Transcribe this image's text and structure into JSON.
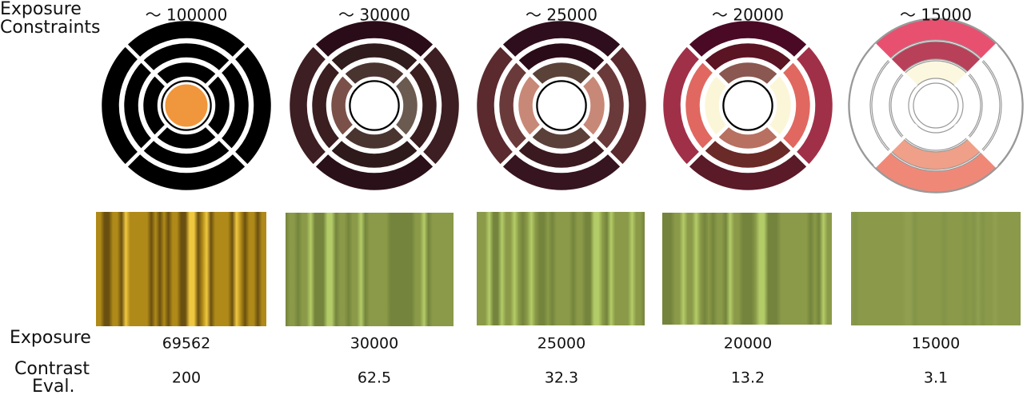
{
  "row_labels": {
    "constraints": [
      "Exposure",
      "Constraints"
    ],
    "exposure": "Exposure",
    "contrast": [
      "Contrast",
      "Eval."
    ]
  },
  "columns": [
    {
      "constraint": "～ 100000",
      "exposure": "69562",
      "contrast": "200"
    },
    {
      "constraint": "～ 30000",
      "exposure": "30000",
      "contrast": "62.5"
    },
    {
      "constraint": "～ 25000",
      "exposure": "25000",
      "contrast": "32.3"
    },
    {
      "constraint": "～ 20000",
      "exposure": "20000",
      "contrast": "13.2"
    },
    {
      "constraint": "～ 15000",
      "exposure": "15000",
      "contrast": "3.1"
    }
  ]
}
